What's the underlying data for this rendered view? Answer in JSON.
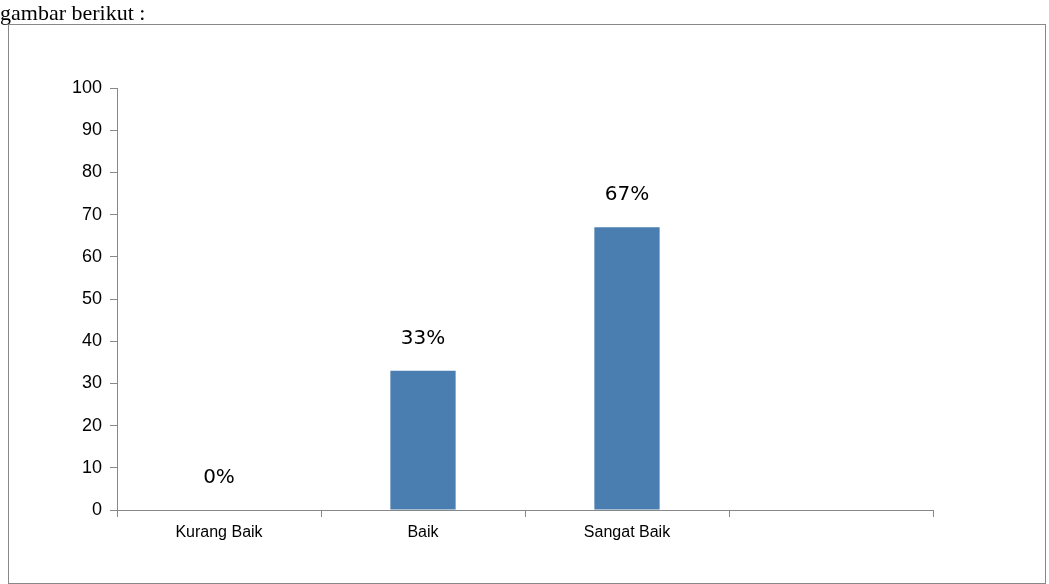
{
  "chart_data": {
    "type": "bar",
    "categories": [
      "Kurang Baik",
      "Baik",
      "Sangat Baik",
      null
    ],
    "values": [
      0,
      33,
      67,
      null
    ],
    "value_labels": [
      "0%",
      "33%",
      "67%",
      null
    ],
    "color": "#4a7eb0",
    "ylim": [
      0,
      100
    ],
    "yticks": [
      0,
      10,
      20,
      30,
      40,
      50,
      60,
      70,
      80,
      90,
      100
    ],
    "grid": false,
    "legend": false,
    "annotations": [
      "gambar berikut :"
    ]
  }
}
